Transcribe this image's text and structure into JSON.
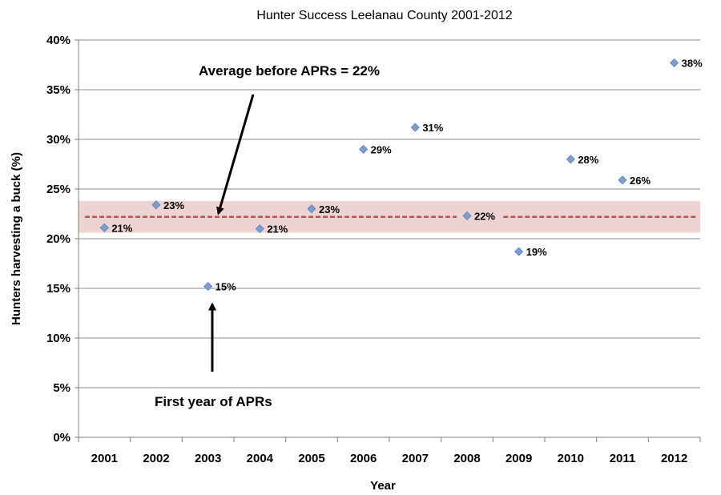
{
  "chart_data": {
    "type": "scatter",
    "title": "Hunter Success Leelanau County 2001-2012",
    "xlabel": "Year",
    "ylabel": "Hunters harvesting a buck (%)",
    "categories": [
      "2001",
      "2002",
      "2003",
      "2004",
      "2005",
      "2006",
      "2007",
      "2008",
      "2009",
      "2010",
      "2011",
      "2012"
    ],
    "series": [
      {
        "values": [
          21.1,
          23.4,
          15.2,
          21.0,
          23.0,
          29.0,
          31.2,
          22.3,
          18.7,
          28.0,
          25.9,
          37.7
        ],
        "labels": [
          "21%",
          "23%",
          "15%",
          "21%",
          "23%",
          "29%",
          "31%",
          "22%",
          "19%",
          "28%",
          "26%",
          "38%"
        ],
        "color": "#7b9fd3"
      }
    ],
    "ylim": [
      0,
      40
    ],
    "yticks": [
      0,
      5,
      10,
      15,
      20,
      25,
      30,
      35,
      40
    ],
    "ytick_labels": [
      "0%",
      "5%",
      "10%",
      "15%",
      "20%",
      "25%",
      "30%",
      "35%",
      "40%"
    ],
    "grid": "horizontal",
    "band": {
      "low": 20.6,
      "high": 23.8,
      "color": "#eed3d3"
    },
    "average_line": {
      "value": 22.2,
      "color": "#c0504d"
    },
    "annotations": [
      {
        "text": "Average before APRs = 22%",
        "arrow_target_category": "2003",
        "arrow_target_value": 22.2
      },
      {
        "text": "First year of APRs",
        "arrow_target_category": "2003",
        "arrow_target_value": 15.2
      }
    ]
  }
}
